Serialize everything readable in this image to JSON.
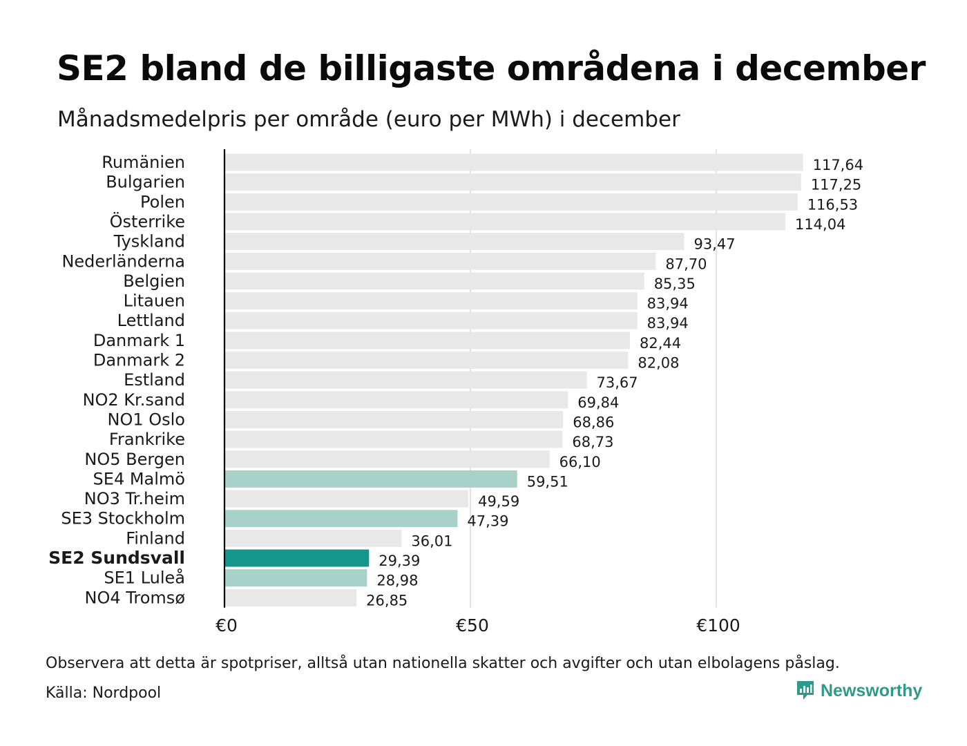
{
  "header": {
    "title": "SE2 bland de billigaste områdena i december",
    "subtitle": "Månadsmedelpris per område (euro per MWh) i december"
  },
  "chart_data": {
    "type": "bar",
    "orientation": "horizontal",
    "title": "SE2 bland de billigaste områdena i december",
    "subtitle": "Månadsmedelpris per område (euro per MWh) i december",
    "xlabel": "",
    "ylabel": "",
    "xlim": [
      0,
      120
    ],
    "x_ticks": [
      0,
      50,
      100
    ],
    "x_tick_labels": [
      "€0",
      "€50",
      "€100"
    ],
    "grid": true,
    "categories": [
      "Rumänien",
      "Bulgarien",
      "Polen",
      "Österrike",
      "Tyskland",
      "Nederländerna",
      "Belgien",
      "Litauen",
      "Lettland",
      "Danmark 1",
      "Danmark 2",
      "Estland",
      "NO2 Kr.sand",
      "NO1 Oslo",
      "Frankrike",
      "NO5 Bergen",
      "SE4 Malmö",
      "NO3 Tr.heim",
      "SE3 Stockholm",
      "Finland",
      "SE2 Sundsvall",
      "SE1 Luleå",
      "NO4 Tromsø"
    ],
    "values": [
      117.64,
      117.25,
      116.53,
      114.04,
      93.47,
      87.7,
      85.35,
      83.94,
      83.94,
      82.44,
      82.08,
      73.67,
      69.84,
      68.86,
      68.73,
      66.1,
      59.51,
      49.59,
      47.39,
      36.01,
      29.39,
      28.98,
      26.85
    ],
    "value_labels": [
      "117,64",
      "117,25",
      "116,53",
      "114,04",
      "93,47",
      "87,70",
      "85,35",
      "83,94",
      "83,94",
      "82,44",
      "82,08",
      "73,67",
      "69,84",
      "68,86",
      "68,73",
      "66,10",
      "59,51",
      "49,59",
      "47,39",
      "36,01",
      "29,39",
      "28,98",
      "26,85"
    ],
    "groups": [
      "other",
      "other",
      "other",
      "other",
      "other",
      "other",
      "other",
      "other",
      "other",
      "other",
      "other",
      "other",
      "other",
      "other",
      "other",
      "other",
      "sweden",
      "other",
      "sweden",
      "other",
      "highlight",
      "sweden",
      "other"
    ],
    "colors": {
      "other": "#e8e8e8",
      "sweden": "#a7d1c9",
      "highlight": "#16958a",
      "grid": "#d0d0d0",
      "axis": "#000000"
    }
  },
  "footer": {
    "note": "Observera att detta är spotpriser, alltså utan nationella skatter och avgifter och utan elbolagens påslag.",
    "source": "Källa: Nordpool",
    "brand": "Newsworthy",
    "brand_icon": "newsworthy-logo-icon",
    "brand_color": "#2f9a8a"
  }
}
